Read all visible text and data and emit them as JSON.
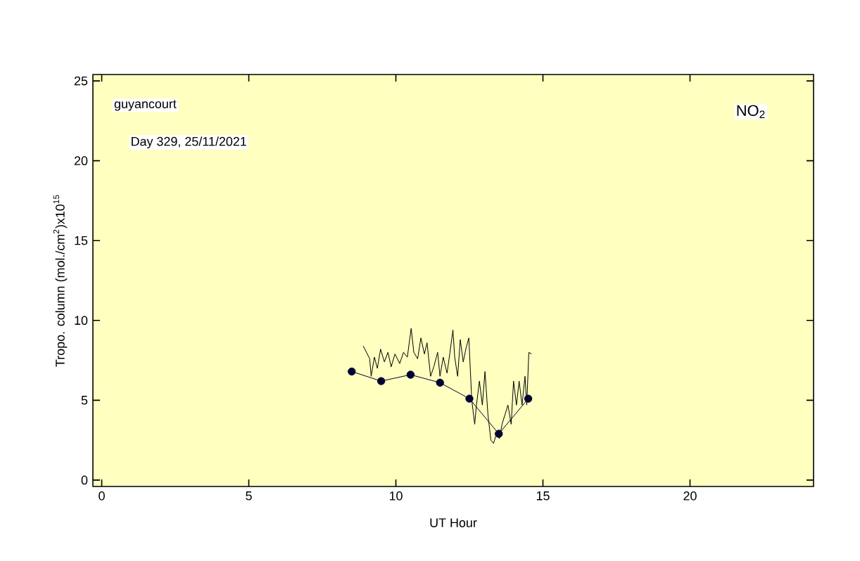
{
  "chart_data": {
    "type": "line",
    "xlabel": "UT Hour",
    "ylabel": "Tropo. column (mol./cm$^{2}$)x10$^{15}$",
    "annotations": [
      "guyancourt",
      "Day 329, 25/11/2021",
      "NO$_{2}$"
    ],
    "xlim": [
      -0.3,
      24.2
    ],
    "ylim": [
      -0.4,
      25.4
    ],
    "xticks": [
      0,
      5,
      10,
      15,
      20
    ],
    "yticks": [
      0,
      5,
      10,
      15,
      20,
      25
    ],
    "series": [
      {
        "color": "#000000",
        "marker": "none",
        "x": [
          8.89,
          9.11,
          9.16,
          9.27,
          9.37,
          9.48,
          9.61,
          9.73,
          9.84,
          9.97,
          10.13,
          10.26,
          10.39,
          10.52,
          10.61,
          10.74,
          10.85,
          10.97,
          11.06,
          11.18,
          11.29,
          11.42,
          11.5,
          11.61,
          11.74,
          11.84,
          11.94,
          12.0,
          12.1,
          12.19,
          12.29,
          12.39,
          12.48,
          12.58,
          12.68,
          12.74,
          12.84,
          12.94,
          13.03,
          13.13,
          13.23,
          13.32,
          13.42,
          13.52,
          13.61,
          13.71,
          13.81,
          13.92,
          14.0,
          14.1,
          14.19,
          14.29,
          14.39,
          14.45,
          14.52,
          14.61
        ],
        "values": [
          8.4,
          7.6,
          6.5,
          7.7,
          7.0,
          8.2,
          7.4,
          8.0,
          7.1,
          7.9,
          7.3,
          8.0,
          7.7,
          9.5,
          8.0,
          7.6,
          8.9,
          7.9,
          8.6,
          6.5,
          7.1,
          8.0,
          6.5,
          7.7,
          6.7,
          8.0,
          9.4,
          7.7,
          6.5,
          8.8,
          7.4,
          8.3,
          8.9,
          5.0,
          3.5,
          4.7,
          6.2,
          4.7,
          6.8,
          4.1,
          2.5,
          2.3,
          2.9,
          2.6,
          3.5,
          4.1,
          4.7,
          3.5,
          6.2,
          4.7,
          6.2,
          4.7,
          6.5,
          4.7,
          8.0,
          7.9
        ]
      },
      {
        "color": "#000033",
        "marker": "circle",
        "x": [
          8.5,
          9.5,
          10.5,
          11.5,
          12.5,
          13.5,
          14.5
        ],
        "values": [
          6.8,
          6.2,
          6.6,
          6.1,
          5.1,
          2.9,
          5.1
        ]
      }
    ]
  }
}
